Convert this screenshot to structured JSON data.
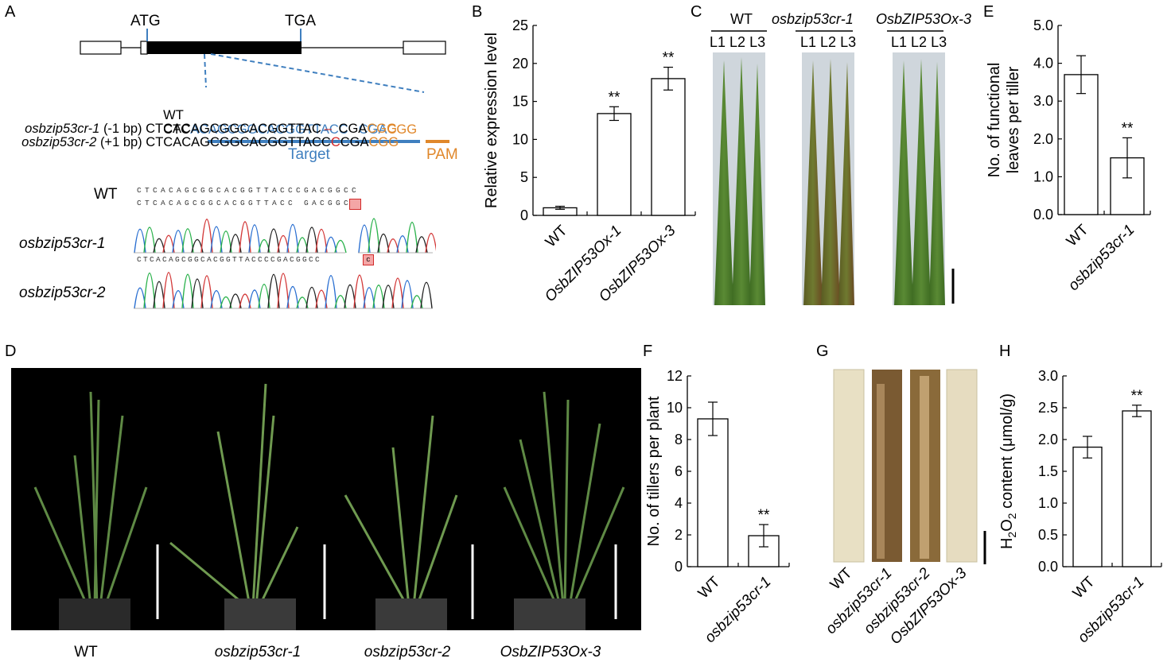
{
  "colors": {
    "target_blue": "#3f7fbf",
    "pam_orange": "#e0872a",
    "mutation_red": "#d22a2a",
    "leaf_green": "#4e7a2e",
    "photo_black": "#000000"
  },
  "panel_labels": {
    "A": "A",
    "B": "B",
    "C": "C",
    "D": "D",
    "E": "E",
    "F": "F",
    "G": "G",
    "H": "H"
  },
  "panelA": {
    "atg": "ATG",
    "tga": "TGA",
    "wt_label": "WT",
    "wt_seq_prefix": "CTC",
    "wt_seq_target": "ACAGCGGCACGGTTACC",
    "wt_seq_cga": "CGA",
    "wt_seq_pam": "CGG",
    "cr1_label": "osbzip53cr-1",
    "cr1_note": "(-1 bp)",
    "cr1_seq": "CTCACAGCGGCACGGTTAC",
    "cr1_gap": "–",
    "cr1_seq2": "CGA",
    "cr1_pam": "CGG",
    "cr2_label": "osbzip53cr-2",
    "cr2_note": "(+1 bp)",
    "cr2_seq": "CTCACAGCGGCACGGTTACC",
    "cr2_ins": "C",
    "cr2_seq2": "CGA",
    "cr2_pam": "CGG",
    "target_label": "Target",
    "pam_label": "PAM",
    "trace_wt_label": "WT",
    "trace_cr1_label": "osbzip53cr-1",
    "trace_cr2_label": "osbzip53cr-2",
    "trace_seq_top": "CTCACAGCGGCACGGTTACCCGACGGCC",
    "trace_seq_mid": "CTCACAGCGGCACGGTTACC GACGGCC",
    "trace_seq_bot": "CTCACAGCGGCACGGTTACCCCGACGGCC",
    "trace_highlight_mid": "",
    "trace_highlight_bot": "c"
  },
  "panelC": {
    "groups": [
      "WT",
      "osbzip53cr-1",
      "OsbZIP53Ox-3"
    ],
    "leaf_labels": [
      "L1",
      "L2",
      "L3"
    ]
  },
  "panelD": {
    "captions": [
      "WT",
      "osbzip53cr-1",
      "osbzip53cr-2",
      "OsbZIP53Ox-3"
    ]
  },
  "panelG": {
    "labels": [
      "WT",
      "osbzip53cr-1",
      "osbzip53cr-2",
      "OsbZIP53Ox-3"
    ]
  },
  "chart_data": [
    {
      "panel": "B",
      "type": "bar",
      "categories": [
        "WT",
        "OsbZIP53Ox-1",
        "OsbZIP53Ox-3"
      ],
      "values": [
        1.0,
        13.4,
        18.0
      ],
      "errors": [
        0.2,
        0.9,
        1.5
      ],
      "significance": [
        "",
        "**",
        "**"
      ],
      "ylabel": "Relative expression level",
      "ylim": [
        0,
        25
      ],
      "yticks": [
        0,
        5,
        10,
        15,
        20,
        25
      ],
      "ytick_labels": [
        "0",
        "5",
        "10",
        "15",
        "20",
        "25"
      ]
    },
    {
      "panel": "E",
      "type": "bar",
      "categories": [
        "WT",
        "osbzip53cr-1"
      ],
      "values": [
        3.7,
        1.5
      ],
      "errors": [
        0.5,
        0.53
      ],
      "significance": [
        "",
        "**"
      ],
      "ylabel_lines": [
        "No. of functional",
        "leaves per tiller"
      ],
      "ylim": [
        0,
        5
      ],
      "yticks": [
        0,
        1,
        2,
        3,
        4,
        5
      ],
      "ytick_labels": [
        "0.0",
        "1.0",
        "2.0",
        "3.0",
        "4.0",
        "5.0"
      ]
    },
    {
      "panel": "F",
      "type": "bar",
      "categories": [
        "WT",
        "osbzip53cr-1"
      ],
      "values": [
        9.3,
        1.95
      ],
      "errors": [
        1.05,
        0.7
      ],
      "significance": [
        "",
        "**"
      ],
      "ylabel": "No. of tillers per plant",
      "ylim": [
        0,
        12
      ],
      "yticks": [
        0,
        2,
        4,
        6,
        8,
        10,
        12
      ],
      "ytick_labels": [
        "0",
        "2",
        "4",
        "6",
        "8",
        "10",
        "12"
      ]
    },
    {
      "panel": "H",
      "type": "bar",
      "categories": [
        "WT",
        "osbzip53cr-1"
      ],
      "values": [
        1.88,
        2.45
      ],
      "errors": [
        0.17,
        0.09
      ],
      "significance": [
        "",
        "**"
      ],
      "ylabel_parts": [
        "H",
        "2",
        "O",
        "2",
        " content (μmol/g)"
      ],
      "ylim": [
        0,
        3
      ],
      "yticks": [
        0,
        0.5,
        1,
        1.5,
        2,
        2.5,
        3
      ],
      "ytick_labels": [
        "0.0",
        "0.5",
        "1.0",
        "1.5",
        "2.0",
        "2.5",
        "3.0"
      ]
    }
  ]
}
